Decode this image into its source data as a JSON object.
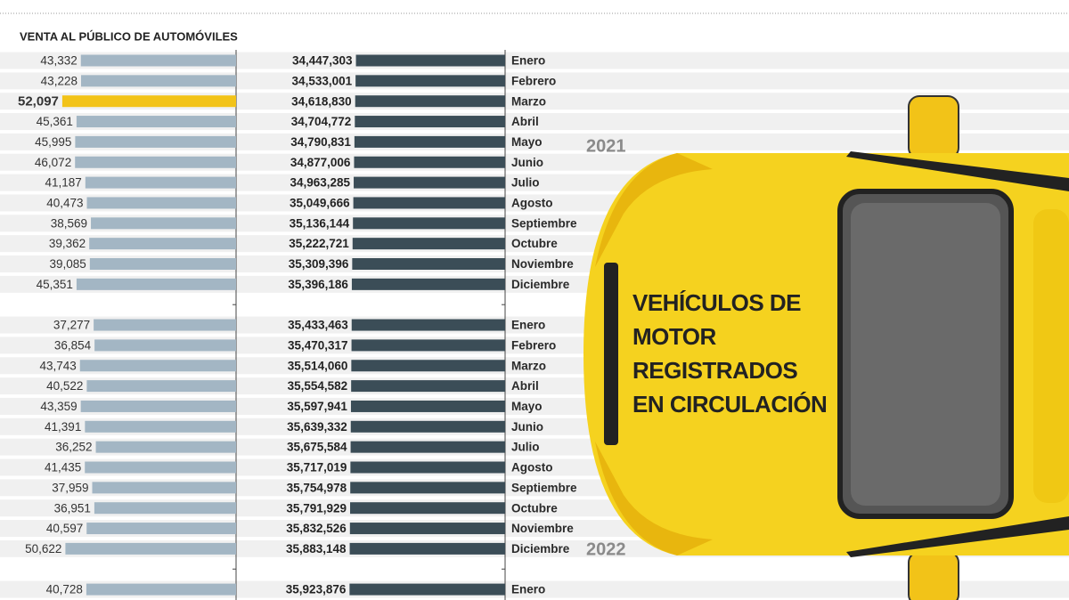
{
  "chart_data": [
    {
      "type": "bar",
      "orientation": "horizontal",
      "title": "VENTA AL PÚBLICO DE AUTOMÓVILES",
      "values": [
        43332,
        43228,
        52097,
        45361,
        45995,
        46072,
        41187,
        40473,
        38569,
        39362,
        39085,
        45351,
        null,
        37277,
        36854,
        43743,
        40522,
        43359,
        41391,
        36252,
        41435,
        37959,
        36951,
        40597,
        50622,
        null,
        40728
      ],
      "value_labels": [
        "43,332",
        "43,228",
        "52,097",
        "45,361",
        "45,995",
        "46,072",
        "41,187",
        "40,473",
        "38,569",
        "39,362",
        "39,085",
        "45,351",
        null,
        "37,277",
        "36,854",
        "43,743",
        "40,522",
        "43,359",
        "41,391",
        "36,252",
        "41,435",
        "37,959",
        "36,951",
        "40,597",
        "50,622",
        null,
        "40,728"
      ],
      "colors": [
        "#a3b6c4",
        "#a3b6c4",
        "#f2c318",
        "#a3b6c4",
        "#a3b6c4",
        "#a3b6c4",
        "#a3b6c4",
        "#a3b6c4",
        "#a3b6c4",
        "#a3b6c4",
        "#a3b6c4",
        "#a3b6c4",
        null,
        "#a3b6c4",
        "#a3b6c4",
        "#a3b6c4",
        "#a3b6c4",
        "#a3b6c4",
        "#a3b6c4",
        "#a3b6c4",
        "#a3b6c4",
        "#a3b6c4",
        "#a3b6c4",
        "#a3b6c4",
        "#a3b6c4",
        null,
        "#a3b6c4"
      ],
      "xlim": [
        -30000,
        55000
      ]
    },
    {
      "type": "bar",
      "orientation": "horizontal",
      "title": "VEHÍCULOS DE MOTOR REGISTRADOS EN CIRCULACIÓN",
      "categories": [
        "Enero",
        "Febrero",
        "Marzo",
        "Abril",
        "Mayo",
        "Junio",
        "Julio",
        "Agosto",
        "Septiembre",
        "Octubre",
        "Noviembre",
        "Diciembre",
        null,
        "Enero",
        "Febrero",
        "Marzo",
        "Abril",
        "Mayo",
        "Junio",
        "Julio",
        "Agosto",
        "Septiembre",
        "Octubre",
        "Noviembre",
        "Diciembre",
        null,
        "Enero"
      ],
      "values": [
        34447303,
        34533001,
        34618830,
        34704772,
        34790831,
        34877006,
        34963285,
        35049666,
        35136144,
        35222721,
        35309396,
        35396186,
        null,
        35433463,
        35470317,
        35514060,
        35554582,
        35597941,
        35639332,
        35675584,
        35717019,
        35754978,
        35791929,
        35832526,
        35883148,
        null,
        35923876
      ],
      "value_labels": [
        "34,447,303",
        "34,533,001",
        "34,618,830",
        "34,704,772",
        "34,790,831",
        "34,877,006",
        "34,963,285",
        "35,049,666",
        "35,136,144",
        "35,222,721",
        "35,309,396",
        "35,396,186",
        null,
        "35,433,463",
        "35,470,317",
        "35,514,060",
        "35,554,582",
        "35,597,941",
        "35,639,332",
        "35,675,584",
        "35,717,019",
        "35,754,978",
        "35,791,929",
        "35,832,526",
        "35,883,148",
        null,
        "35,923,876"
      ],
      "color": "#3b4d57",
      "xlim": [
        0,
        36000000
      ],
      "annotations": [
        "2021",
        "2022"
      ]
    }
  ]
}
